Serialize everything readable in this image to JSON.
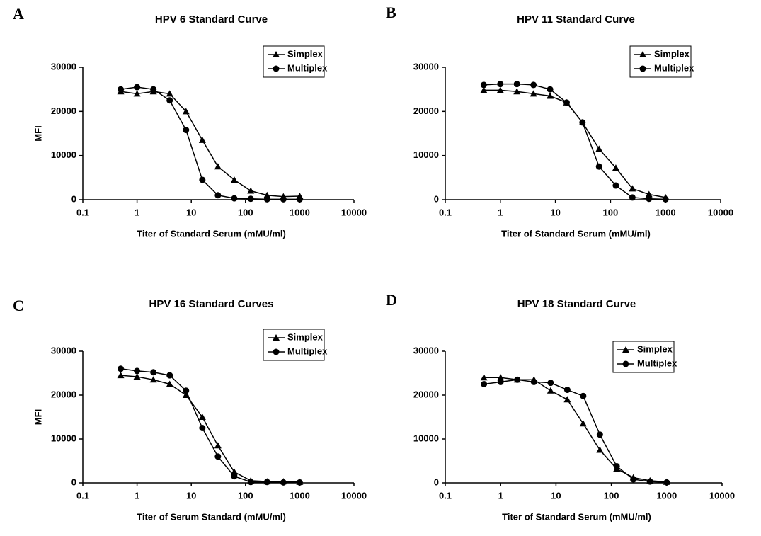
{
  "chart_data": [
    {
      "type": "line",
      "panel_label": "A",
      "title": "HPV 6 Standard Curve",
      "xlabel": "Titer of Standard Serum (mMU/ml)",
      "ylabel": "MFI",
      "xscale": "log",
      "x": [
        0.5,
        1,
        2,
        4,
        8,
        16,
        31,
        62,
        125,
        250,
        500,
        1000
      ],
      "xlim": [
        0.1,
        10000
      ],
      "xticks": [
        0.1,
        1,
        10,
        100,
        1000,
        10000
      ],
      "ylim": [
        0,
        30000
      ],
      "yticks": [
        0,
        10000,
        20000,
        30000
      ],
      "legend": "upper right",
      "series": [
        {
          "name": "Simplex",
          "color": "#000000",
          "marker": "triangle",
          "values": [
            24500,
            24000,
            24500,
            24000,
            20000,
            13500,
            7500,
            4500,
            2000,
            1000,
            700,
            800
          ]
        },
        {
          "name": "Multiplex",
          "color": "#000000",
          "marker": "circle",
          "values": [
            25000,
            25500,
            25000,
            22500,
            15800,
            4500,
            1000,
            300,
            200,
            100,
            100,
            100
          ]
        }
      ]
    },
    {
      "type": "line",
      "panel_label": "B",
      "title": "HPV 11 Standard Curve",
      "xlabel": "Titer of Standard Serum (mMU/ml)",
      "xscale": "log",
      "x": [
        0.5,
        1,
        2,
        4,
        8,
        16,
        31,
        62,
        125,
        250,
        500,
        1000
      ],
      "xlim": [
        0.1,
        10000
      ],
      "xticks": [
        0.1,
        1,
        10,
        100,
        1000,
        10000
      ],
      "ylim": [
        0,
        30000
      ],
      "yticks": [
        0,
        10000,
        20000,
        30000
      ],
      "legend": "upper right",
      "series": [
        {
          "name": "Simplex",
          "color": "#000000",
          "marker": "triangle",
          "values": [
            24800,
            24800,
            24500,
            24000,
            23500,
            22000,
            17500,
            11500,
            7200,
            2500,
            1200,
            500
          ]
        },
        {
          "name": "Multiplex",
          "color": "#000000",
          "marker": "circle",
          "values": [
            26000,
            26200,
            26200,
            26000,
            25000,
            22000,
            17500,
            7500,
            3200,
            500,
            200,
            100
          ]
        }
      ]
    },
    {
      "type": "line",
      "panel_label": "C",
      "title": "HPV 16 Standard Curves",
      "xlabel": "Titer of Serum Standard (mMU/ml)",
      "ylabel": "MFI",
      "xscale": "log",
      "x": [
        0.5,
        1,
        2,
        4,
        8,
        16,
        31,
        62,
        125,
        250,
        500,
        1000
      ],
      "xlim": [
        0.1,
        10000
      ],
      "xticks": [
        0.1,
        1,
        10,
        100,
        1000,
        10000
      ],
      "ylim": [
        0,
        30000
      ],
      "yticks": [
        0,
        10000,
        20000,
        30000
      ],
      "legend": "upper right",
      "series": [
        {
          "name": "Simplex",
          "color": "#000000",
          "marker": "triangle",
          "values": [
            24500,
            24200,
            23500,
            22500,
            20000,
            15000,
            8500,
            2500,
            500,
            300,
            300,
            200
          ]
        },
        {
          "name": "Multiplex",
          "color": "#000000",
          "marker": "circle",
          "values": [
            26000,
            25500,
            25200,
            24500,
            21000,
            12500,
            6000,
            1500,
            200,
            200,
            100,
            100
          ]
        }
      ]
    },
    {
      "type": "line",
      "panel_label": "D",
      "title": "HPV 18 Standard Curve",
      "xlabel": "Titer of Standard Serum (mMU/ml)",
      "xscale": "log",
      "x": [
        0.5,
        1,
        2,
        4,
        8,
        16,
        31,
        62,
        125,
        250,
        500,
        1000
      ],
      "xlim": [
        0.1,
        10000
      ],
      "xticks": [
        0.1,
        1,
        10,
        100,
        1000,
        10000
      ],
      "ylim": [
        0,
        30000
      ],
      "yticks": [
        0,
        10000,
        20000,
        30000
      ],
      "legend": "upper right",
      "series": [
        {
          "name": "Simplex",
          "color": "#000000",
          "marker": "triangle",
          "values": [
            24000,
            24000,
            23500,
            23500,
            21000,
            19000,
            13500,
            7500,
            3200,
            1200,
            500,
            200
          ]
        },
        {
          "name": "Multiplex",
          "color": "#000000",
          "marker": "circle",
          "values": [
            22500,
            23000,
            23500,
            23000,
            22800,
            21200,
            19800,
            11000,
            3800,
            800,
            300,
            100
          ]
        }
      ]
    }
  ]
}
